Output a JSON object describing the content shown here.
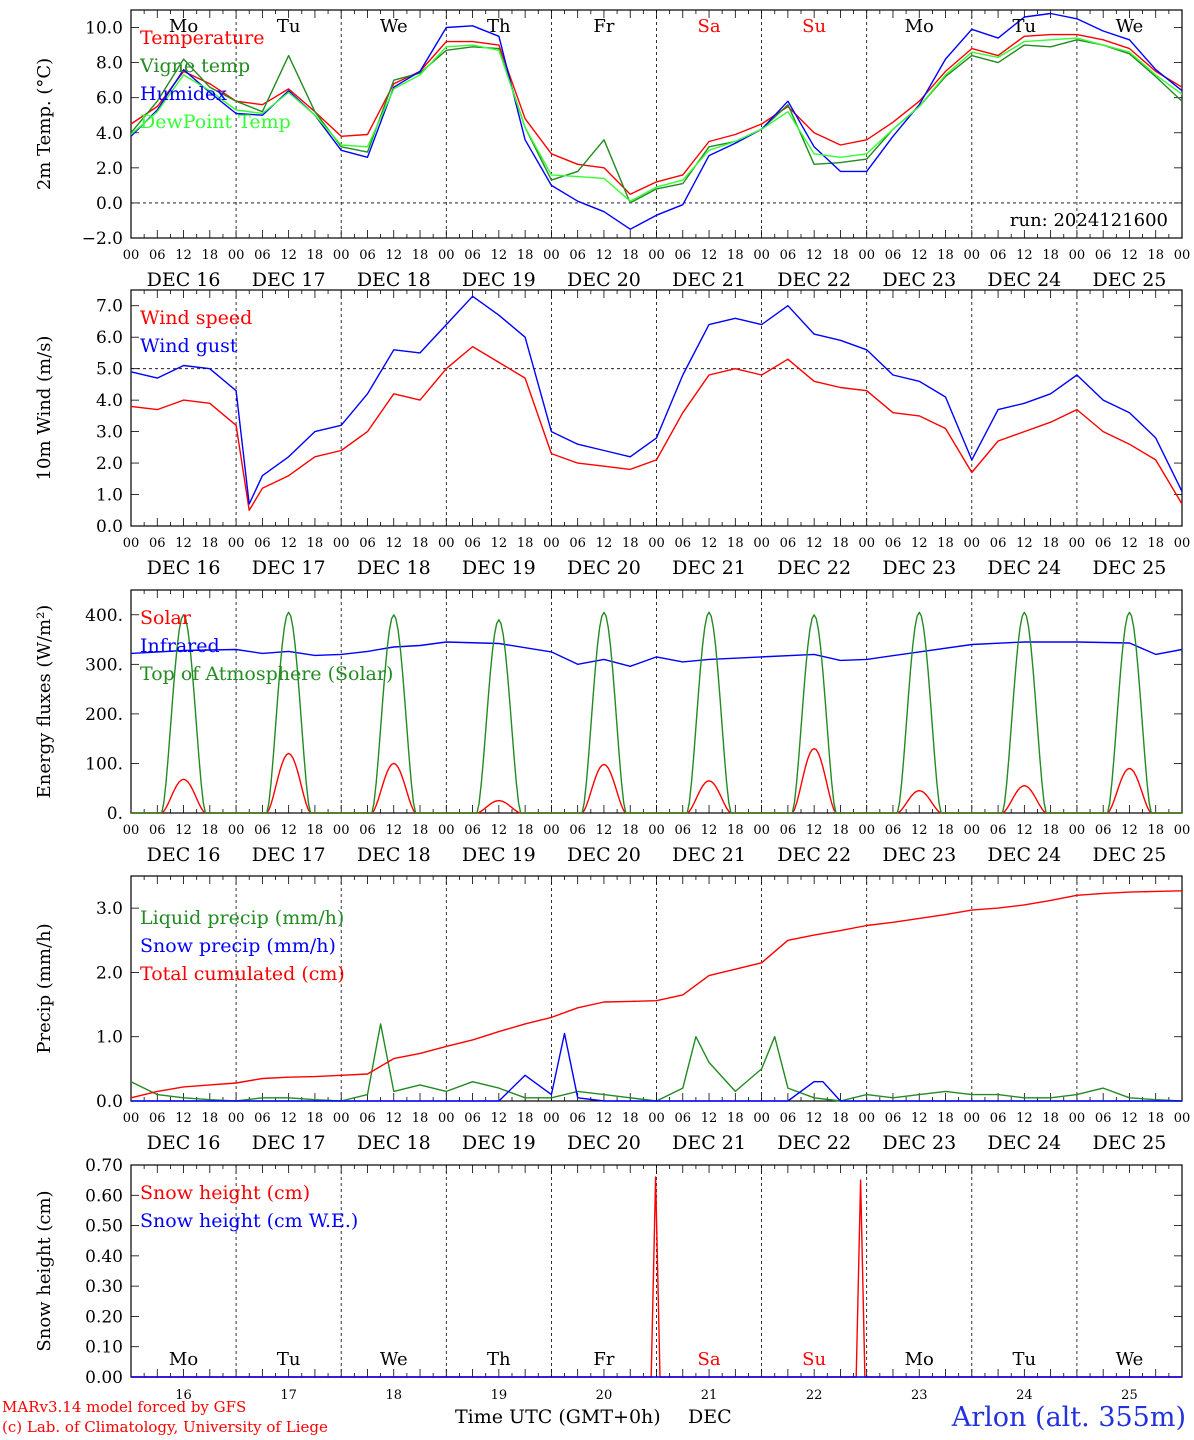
{
  "colors": {
    "red": "#ff0000",
    "green": "#228b22",
    "blue": "#0000ff",
    "lightgreen": "#33ff33",
    "axis": "#000000",
    "weekend": "#ff0000",
    "station": "#2233dd"
  },
  "day_names": [
    "Mo",
    "Tu",
    "We",
    "Th",
    "Fr",
    "Sa",
    "Su",
    "Mo",
    "Tu",
    "We"
  ],
  "weekend_index": [
    5,
    6
  ],
  "day_dates": [
    "DEC 16",
    "DEC 17",
    "DEC 18",
    "DEC 19",
    "DEC 20",
    "DEC 21",
    "DEC 22",
    "DEC 23",
    "DEC 24",
    "DEC 25"
  ],
  "day_numbers": [
    "16",
    "17",
    "18",
    "19",
    "20",
    "21",
    "22",
    "23",
    "24",
    "25"
  ],
  "hour_ticks": [
    "00",
    "06",
    "12",
    "18"
  ],
  "footer": {
    "model": "MARv3.14 model forced by GFS",
    "copyright": "(c) Lab. of Climatology, University of Liege",
    "xlabel": "Time UTC (GMT+0h)",
    "month": "DEC",
    "station": "Arlon (alt. 355m)"
  },
  "chart_data": [
    {
      "type": "line",
      "ylabel": "2m Temp. (°C)",
      "ylim": [
        -2,
        11
      ],
      "yticks": [
        -2,
        0,
        2,
        4,
        6,
        8,
        10
      ],
      "ytick_labels": [
        "−2.0",
        "0.0",
        "2.0",
        "4.0",
        "6.0",
        "8.0",
        "10.0"
      ],
      "dashed_y": 0,
      "annotation": "run: 2024121600",
      "x_unit": "hours since DEC 16 00 UTC",
      "x": [
        0,
        6,
        12,
        18,
        24,
        30,
        36,
        42,
        48,
        54,
        60,
        66,
        72,
        78,
        84,
        90,
        96,
        102,
        108,
        114,
        120,
        126,
        132,
        138,
        144,
        150,
        156,
        162,
        168,
        174,
        180,
        186,
        192,
        198,
        204,
        210,
        216,
        222,
        228,
        234,
        240
      ],
      "series": [
        {
          "name": "Temperature",
          "color": "#ff0000",
          "values": [
            4.5,
            5.5,
            7.5,
            6.8,
            5.8,
            5.6,
            6.5,
            5.2,
            3.8,
            3.9,
            6.8,
            7.5,
            9.2,
            9.2,
            9.0,
            4.8,
            2.8,
            2.2,
            2.0,
            0.5,
            1.2,
            1.6,
            3.5,
            3.9,
            4.5,
            5.5,
            4.0,
            3.3,
            3.6,
            4.6,
            5.8,
            7.5,
            8.8,
            8.4,
            9.5,
            9.6,
            9.6,
            9.3,
            8.8,
            7.5,
            6.6
          ]
        },
        {
          "name": "Vigne temp",
          "color": "#228b22",
          "values": [
            4.0,
            5.8,
            8.2,
            6.6,
            5.8,
            5.2,
            8.4,
            5.2,
            3.2,
            2.9,
            7.0,
            7.4,
            8.7,
            8.9,
            8.8,
            4.3,
            1.3,
            1.8,
            3.6,
            0.0,
            0.8,
            1.1,
            3.2,
            3.5,
            4.2,
            5.6,
            2.2,
            2.3,
            2.5,
            4.2,
            5.5,
            7.2,
            8.4,
            8.0,
            9.0,
            8.9,
            9.3,
            9.0,
            8.5,
            7.2,
            5.8
          ]
        },
        {
          "name": "Humidex",
          "color": "#0000ff",
          "values": [
            3.8,
            5.3,
            7.6,
            6.3,
            5.1,
            5.0,
            6.4,
            5.0,
            3.0,
            2.6,
            6.6,
            7.5,
            10.0,
            10.1,
            9.5,
            3.6,
            1.0,
            0.1,
            -0.5,
            -1.5,
            -0.7,
            -0.1,
            2.7,
            3.4,
            4.2,
            5.8,
            3.2,
            1.8,
            1.8,
            3.8,
            5.6,
            8.2,
            9.9,
            9.4,
            10.6,
            10.8,
            10.5,
            9.8,
            9.3,
            7.6,
            6.4
          ]
        },
        {
          "name": "DewPoint Temp",
          "color": "#33ff33",
          "values": [
            3.9,
            5.2,
            7.3,
            6.4,
            5.3,
            5.1,
            6.3,
            5.0,
            3.3,
            3.2,
            6.5,
            7.3,
            8.9,
            9.0,
            8.7,
            4.3,
            1.6,
            1.5,
            1.4,
            0.1,
            0.9,
            1.3,
            3.0,
            3.5,
            4.2,
            5.2,
            2.8,
            2.6,
            2.8,
            4.2,
            5.5,
            7.3,
            8.6,
            8.3,
            9.2,
            9.3,
            9.4,
            9.0,
            8.6,
            7.3,
            6.2
          ]
        }
      ]
    },
    {
      "type": "line",
      "ylabel": "10m Wind (m/s)",
      "ylim": [
        0,
        7.5
      ],
      "yticks": [
        0,
        1,
        2,
        3,
        4,
        5,
        6,
        7
      ],
      "ytick_labels": [
        "0.0",
        "1.0",
        "2.0",
        "3.0",
        "4.0",
        "5.0",
        "6.0",
        "7.0"
      ],
      "dashed_y": 5,
      "x": [
        0,
        6,
        12,
        18,
        24,
        27,
        30,
        36,
        42,
        48,
        54,
        60,
        66,
        72,
        78,
        84,
        90,
        96,
        102,
        108,
        114,
        120,
        126,
        132,
        138,
        144,
        150,
        156,
        162,
        168,
        174,
        180,
        186,
        192,
        198,
        204,
        210,
        216,
        222,
        228,
        234,
        240
      ],
      "series": [
        {
          "name": "Wind speed",
          "color": "#ff0000",
          "values": [
            3.8,
            3.7,
            4.0,
            3.9,
            3.2,
            0.5,
            1.2,
            1.6,
            2.2,
            2.4,
            3.0,
            4.2,
            4.0,
            5.0,
            5.7,
            5.2,
            4.7,
            2.3,
            2.0,
            1.9,
            1.8,
            2.1,
            3.6,
            4.8,
            5.0,
            4.8,
            5.3,
            4.6,
            4.4,
            4.3,
            3.6,
            3.5,
            3.1,
            1.7,
            2.7,
            3.0,
            3.3,
            3.7,
            3.0,
            2.6,
            2.1,
            0.7
          ]
        },
        {
          "name": "Wind gust",
          "color": "#0000ff",
          "values": [
            4.9,
            4.7,
            5.1,
            5.0,
            4.3,
            0.7,
            1.6,
            2.2,
            3.0,
            3.2,
            4.2,
            5.6,
            5.5,
            6.4,
            7.3,
            6.7,
            6.0,
            3.0,
            2.6,
            2.4,
            2.2,
            2.8,
            4.8,
            6.4,
            6.6,
            6.4,
            7.0,
            6.1,
            5.9,
            5.6,
            4.8,
            4.6,
            4.1,
            2.1,
            3.7,
            3.9,
            4.2,
            4.8,
            4.0,
            3.6,
            2.8,
            1.1
          ]
        }
      ]
    },
    {
      "type": "line",
      "ylabel": "Energy fluxes (W/m²)",
      "ylim": [
        0,
        450
      ],
      "yticks": [
        0,
        100,
        200,
        300,
        400
      ],
      "ytick_labels": [
        "0.",
        "100.",
        "200.",
        "300.",
        "400."
      ],
      "series": [
        {
          "name": "Solar",
          "color": "#ff0000",
          "peaks": [
            68,
            120,
            100,
            25,
            98,
            65,
            130,
            45,
            55,
            90
          ]
        },
        {
          "name": "Infrared",
          "color": "#0000ff",
          "x": [
            0,
            12,
            24,
            30,
            36,
            42,
            48,
            54,
            60,
            66,
            72,
            84,
            96,
            102,
            108,
            114,
            120,
            126,
            132,
            144,
            156,
            162,
            168,
            180,
            192,
            204,
            216,
            228,
            234,
            240
          ],
          "values": [
            322,
            328,
            330,
            322,
            326,
            318,
            320,
            326,
            335,
            338,
            345,
            342,
            325,
            300,
            310,
            296,
            315,
            305,
            310,
            315,
            320,
            308,
            310,
            325,
            340,
            345,
            345,
            343,
            320,
            330
          ]
        },
        {
          "name": "Top of Atmosphere (Solar)",
          "color": "#228b22",
          "peaks": [
            400,
            405,
            400,
            390,
            405,
            405,
            400,
            405,
            405,
            405
          ]
        }
      ]
    },
    {
      "type": "line",
      "ylabel": "Precip (mm/h)",
      "ylim": [
        0,
        3.5
      ],
      "yticks": [
        0,
        1,
        2,
        3
      ],
      "ytick_labels": [
        "0.0",
        "1.0",
        "2.0",
        "3.0"
      ],
      "series": [
        {
          "name": "Liquid precip (mm/h)",
          "color": "#228b22",
          "x": [
            0,
            6,
            12,
            18,
            24,
            30,
            36,
            42,
            48,
            54,
            57,
            60,
            66,
            72,
            78,
            84,
            90,
            96,
            102,
            108,
            114,
            120,
            126,
            129,
            132,
            138,
            144,
            147,
            150,
            156,
            162,
            168,
            174,
            180,
            186,
            192,
            198,
            204,
            210,
            216,
            222,
            228,
            234,
            240
          ],
          "values": [
            0.3,
            0.1,
            0.05,
            0.02,
            0.0,
            0.05,
            0.05,
            0.02,
            0.0,
            0.1,
            1.2,
            0.15,
            0.25,
            0.15,
            0.3,
            0.2,
            0.05,
            0.05,
            0.15,
            0.1,
            0.05,
            0.0,
            0.2,
            1.0,
            0.6,
            0.15,
            0.5,
            1.0,
            0.2,
            0.05,
            0.0,
            0.1,
            0.05,
            0.1,
            0.15,
            0.1,
            0.1,
            0.05,
            0.05,
            0.1,
            0.2,
            0.05,
            0.02,
            0.0
          ]
        },
        {
          "name": "Snow precip (mm/h)",
          "color": "#0000ff",
          "x": [
            0,
            84,
            90,
            96,
            99,
            102,
            108,
            114,
            120,
            150,
            156,
            158,
            162,
            240
          ],
          "values": [
            0,
            0,
            0.4,
            0.1,
            1.05,
            0.05,
            0,
            0,
            0,
            0,
            0.3,
            0.3,
            0,
            0
          ]
        },
        {
          "name": "Total cumulated (cm)",
          "color": "#ff0000",
          "x": [
            0,
            6,
            12,
            18,
            24,
            30,
            36,
            42,
            48,
            54,
            60,
            66,
            72,
            78,
            84,
            90,
            96,
            102,
            108,
            114,
            120,
            126,
            132,
            138,
            144,
            150,
            156,
            162,
            168,
            174,
            180,
            186,
            192,
            198,
            204,
            210,
            216,
            222,
            228,
            234,
            240
          ],
          "values": [
            0.05,
            0.15,
            0.22,
            0.25,
            0.28,
            0.35,
            0.37,
            0.38,
            0.4,
            0.42,
            0.66,
            0.74,
            0.85,
            0.95,
            1.08,
            1.2,
            1.3,
            1.45,
            1.54,
            1.55,
            1.56,
            1.65,
            1.95,
            2.05,
            2.15,
            2.5,
            2.58,
            2.65,
            2.73,
            2.78,
            2.84,
            2.9,
            2.97,
            3.0,
            3.05,
            3.12,
            3.2,
            3.23,
            3.25,
            3.26,
            3.27
          ]
        }
      ]
    },
    {
      "type": "line",
      "ylabel": "Snow height (cm)",
      "ylim": [
        0,
        0.7
      ],
      "yticks": [
        0,
        0.1,
        0.2,
        0.3,
        0.4,
        0.5,
        0.6,
        0.7
      ],
      "ytick_labels": [
        "0.00",
        "0.10",
        "0.20",
        "0.30",
        "0.40",
        "0.50",
        "0.60",
        "0.70"
      ],
      "series": [
        {
          "name": "Snow height (cm)",
          "color": "#ff0000",
          "x": [
            0,
            118.8,
            119.8,
            120.8,
            165.6,
            166.6,
            167.6,
            240
          ],
          "values": [
            0,
            0,
            0.66,
            0,
            0,
            0.65,
            0,
            0
          ]
        },
        {
          "name": "Snow height (cm W.E.)",
          "color": "#0000ff",
          "x": [
            0,
            240
          ],
          "values": [
            0,
            0
          ]
        }
      ]
    }
  ]
}
